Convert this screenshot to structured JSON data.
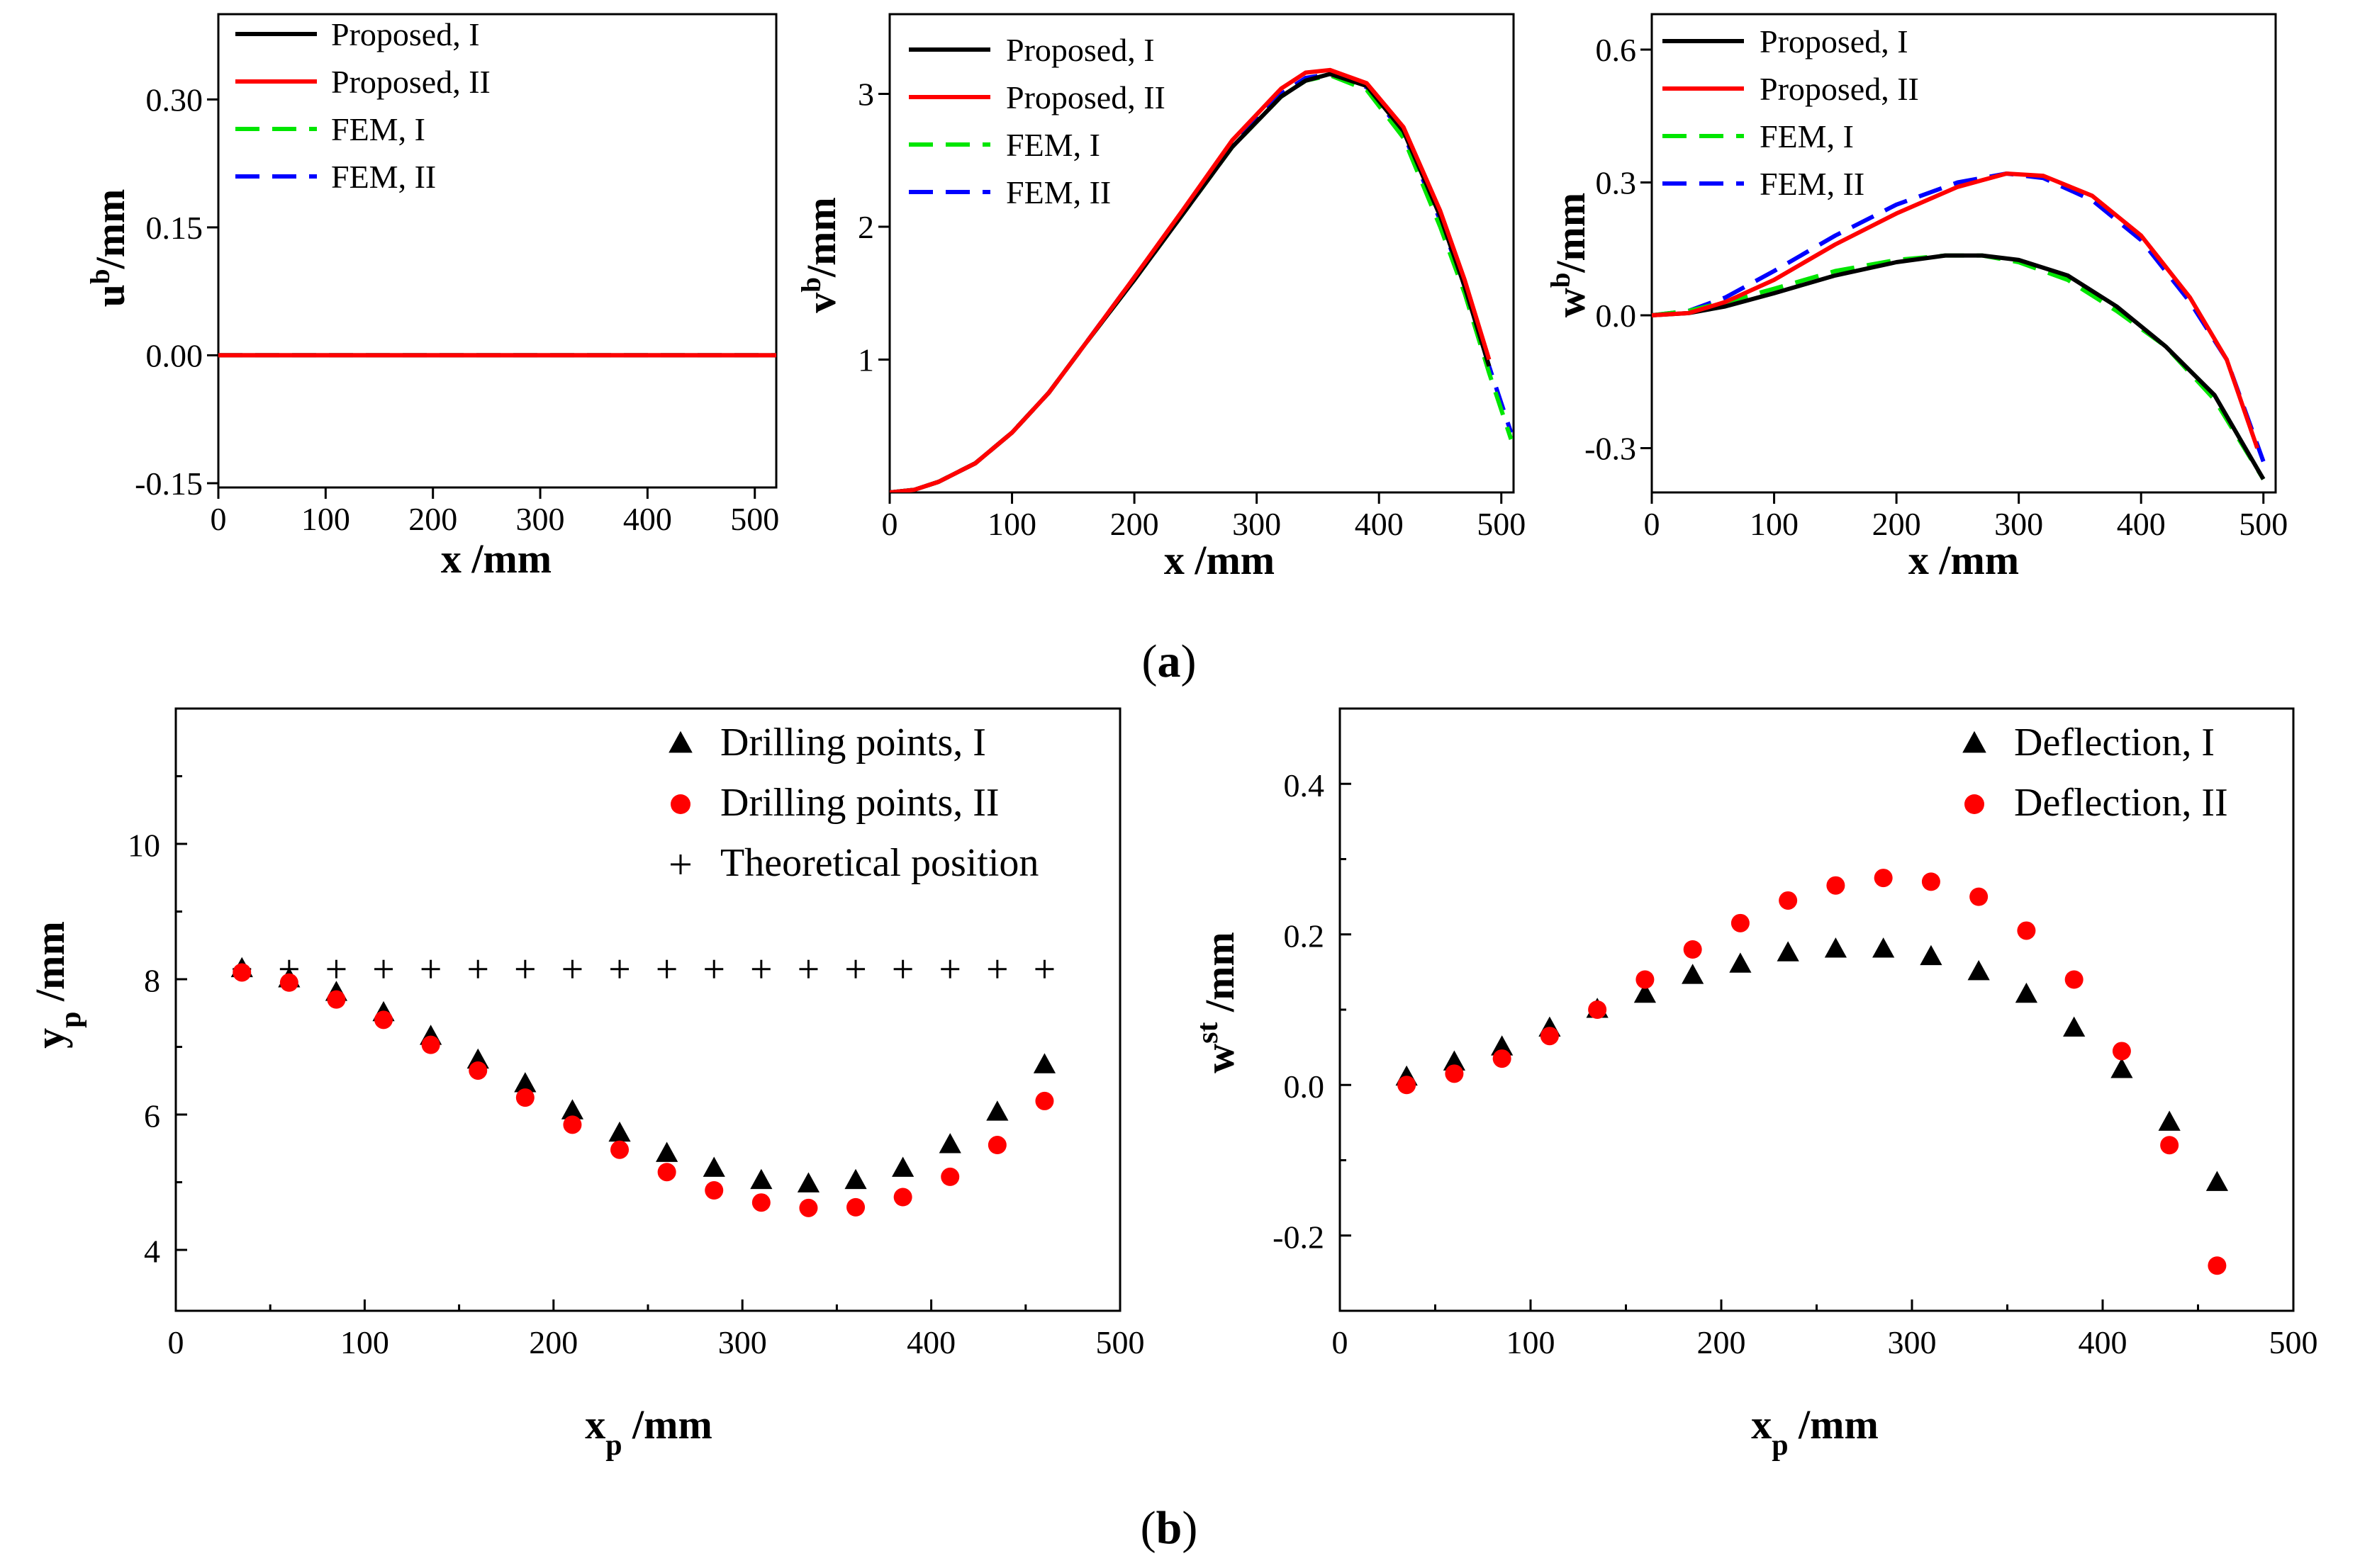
{
  "panels": {
    "a": {
      "open": "(",
      "letter": "a",
      "close": ")"
    },
    "b": {
      "open": "(",
      "letter": "b",
      "close": ")"
    }
  },
  "chart_data": [
    {
      "id": "ub",
      "type": "line",
      "ylabel": {
        "main": "u",
        "sup": "b",
        "unit": "/mm"
      },
      "xlabel": "x /mm",
      "xlim": [
        0,
        520
      ],
      "ylim": [
        -0.155,
        0.4
      ],
      "xticks": [
        0,
        100,
        200,
        300,
        400,
        500
      ],
      "xtick_labels": [
        "0",
        "100",
        "200",
        "300",
        "400",
        "500"
      ],
      "yticks": [
        -0.15,
        0,
        0.15,
        0.3
      ],
      "ytick_labels": [
        "-0.15",
        "0.00",
        "0.15",
        "0.30"
      ],
      "legend": [
        {
          "label": "Proposed, I",
          "color": "#000000",
          "dash": false
        },
        {
          "label": "Proposed, II",
          "color": "#ff0000",
          "dash": false
        },
        {
          "label": "FEM, I",
          "color": "#00e600",
          "dash": true
        },
        {
          "label": "FEM, II",
          "color": "#0000ff",
          "dash": true
        }
      ],
      "series": [
        {
          "name": "FEM, II",
          "color": "#0000ff",
          "dash": true,
          "x": [
            0,
            520
          ],
          "y": [
            0,
            0
          ]
        },
        {
          "name": "FEM, I",
          "color": "#00e600",
          "dash": true,
          "x": [
            0,
            520
          ],
          "y": [
            0,
            0
          ]
        },
        {
          "name": "Proposed, I",
          "color": "#000000",
          "dash": false,
          "x": [
            0,
            520
          ],
          "y": [
            0,
            0
          ]
        },
        {
          "name": "Proposed, II",
          "color": "#ff0000",
          "dash": false,
          "x": [
            0,
            520
          ],
          "y": [
            0,
            0
          ]
        }
      ]
    },
    {
      "id": "vb",
      "type": "line",
      "ylabel": {
        "main": "v",
        "sup": "b",
        "unit": "/mm"
      },
      "xlabel": "x /mm",
      "xlim": [
        0,
        510
      ],
      "ylim": [
        0,
        3.6
      ],
      "xticks": [
        0,
        100,
        200,
        300,
        400,
        500
      ],
      "xtick_labels": [
        "0",
        "100",
        "200",
        "300",
        "400",
        "500"
      ],
      "yticks": [
        1,
        2,
        3
      ],
      "ytick_labels": [
        "1",
        "2",
        "3"
      ],
      "legend": [
        {
          "label": "Proposed, I",
          "color": "#000000",
          "dash": false
        },
        {
          "label": "Proposed, II",
          "color": "#ff0000",
          "dash": false
        },
        {
          "label": "FEM, I",
          "color": "#00e600",
          "dash": true
        },
        {
          "label": "FEM, II",
          "color": "#0000ff",
          "dash": true
        }
      ],
      "series": [
        {
          "name": "FEM, II",
          "color": "#0000ff",
          "dash": true,
          "x": [
            0,
            20,
            40,
            70,
            100,
            130,
            160,
            200,
            240,
            280,
            320,
            340,
            360,
            390,
            420,
            450,
            470,
            490,
            508
          ],
          "y": [
            0,
            0.02,
            0.08,
            0.22,
            0.45,
            0.75,
            1.12,
            1.62,
            2.12,
            2.62,
            3.0,
            3.12,
            3.15,
            3.05,
            2.7,
            2.05,
            1.55,
            0.95,
            0.45
          ]
        },
        {
          "name": "FEM, I",
          "color": "#00e600",
          "dash": true,
          "x": [
            0,
            20,
            40,
            70,
            100,
            130,
            160,
            200,
            240,
            280,
            320,
            340,
            360,
            390,
            420,
            450,
            470,
            490,
            508
          ],
          "y": [
            0,
            0.02,
            0.08,
            0.22,
            0.45,
            0.75,
            1.12,
            1.6,
            2.1,
            2.6,
            2.98,
            3.1,
            3.14,
            3.03,
            2.67,
            2.0,
            1.5,
            0.9,
            0.4
          ]
        },
        {
          "name": "Proposed, I",
          "color": "#000000",
          "dash": false,
          "x": [
            0,
            20,
            40,
            70,
            100,
            130,
            160,
            200,
            240,
            280,
            320,
            340,
            360,
            390,
            420,
            450,
            470,
            490
          ],
          "y": [
            0,
            0.02,
            0.08,
            0.22,
            0.45,
            0.75,
            1.12,
            1.6,
            2.1,
            2.6,
            2.98,
            3.1,
            3.15,
            3.06,
            2.72,
            2.08,
            1.55,
            0.95
          ]
        },
        {
          "name": "Proposed, II",
          "color": "#ff0000",
          "dash": false,
          "x": [
            0,
            20,
            40,
            70,
            100,
            130,
            160,
            200,
            240,
            280,
            320,
            340,
            360,
            390,
            420,
            450,
            470,
            490
          ],
          "y": [
            0,
            0.02,
            0.08,
            0.22,
            0.45,
            0.75,
            1.12,
            1.62,
            2.13,
            2.65,
            3.04,
            3.16,
            3.18,
            3.08,
            2.75,
            2.12,
            1.6,
            1.0
          ]
        }
      ]
    },
    {
      "id": "wb",
      "type": "line",
      "ylabel": {
        "main": "w",
        "sup": "b",
        "unit": "/mm"
      },
      "xlabel": "x /mm",
      "xlim": [
        0,
        510
      ],
      "ylim": [
        -0.4,
        0.68
      ],
      "xticks": [
        0,
        100,
        200,
        300,
        400,
        500
      ],
      "xtick_labels": [
        "0",
        "100",
        "200",
        "300",
        "400",
        "500"
      ],
      "yticks": [
        -0.3,
        0,
        0.3,
        0.6
      ],
      "ytick_labels": [
        "-0.3",
        "0.0",
        "0.3",
        "0.6"
      ],
      "legend": [
        {
          "label": "Proposed, I",
          "color": "#000000",
          "dash": false
        },
        {
          "label": "Proposed, II",
          "color": "#ff0000",
          "dash": false
        },
        {
          "label": "FEM, I",
          "color": "#00e600",
          "dash": true
        },
        {
          "label": "FEM, II",
          "color": "#0000ff",
          "dash": true
        }
      ],
      "series": [
        {
          "name": "FEM, II",
          "color": "#0000ff",
          "dash": true,
          "x": [
            0,
            30,
            60,
            100,
            150,
            200,
            250,
            290,
            320,
            360,
            400,
            440,
            470,
            500
          ],
          "y": [
            0,
            0.01,
            0.04,
            0.1,
            0.18,
            0.25,
            0.3,
            0.32,
            0.31,
            0.26,
            0.17,
            0.03,
            -0.1,
            -0.33
          ]
        },
        {
          "name": "FEM, I",
          "color": "#00e600",
          "dash": true,
          "x": [
            0,
            30,
            60,
            100,
            150,
            200,
            240,
            270,
            300,
            340,
            380,
            420,
            460,
            500
          ],
          "y": [
            0,
            0.01,
            0.03,
            0.06,
            0.1,
            0.125,
            0.135,
            0.135,
            0.12,
            0.08,
            0.01,
            -0.07,
            -0.19,
            -0.37
          ]
        },
        {
          "name": "Proposed, I",
          "color": "#000000",
          "dash": false,
          "x": [
            0,
            30,
            60,
            100,
            150,
            200,
            240,
            270,
            300,
            340,
            380,
            420,
            460,
            500
          ],
          "y": [
            0,
            0.005,
            0.02,
            0.05,
            0.09,
            0.12,
            0.135,
            0.135,
            0.125,
            0.09,
            0.02,
            -0.07,
            -0.18,
            -0.37
          ]
        },
        {
          "name": "Proposed, II",
          "color": "#ff0000",
          "dash": false,
          "x": [
            0,
            30,
            60,
            100,
            150,
            200,
            250,
            290,
            320,
            360,
            400,
            440,
            470,
            495
          ],
          "y": [
            0,
            0.005,
            0.03,
            0.08,
            0.16,
            0.23,
            0.29,
            0.32,
            0.315,
            0.27,
            0.18,
            0.04,
            -0.1,
            -0.3
          ]
        }
      ]
    },
    {
      "id": "yp",
      "type": "scatter",
      "ylabel": {
        "main": "y",
        "sub": "p",
        "unit": " /mm"
      },
      "xlabel": {
        "main": "x",
        "sub": "p",
        "unit": " /mm"
      },
      "xlim": [
        0,
        500
      ],
      "ylim": [
        3.1,
        12
      ],
      "xticks": [
        0,
        100,
        200,
        300,
        400,
        500
      ],
      "xtick_labels": [
        "0",
        "100",
        "200",
        "300",
        "400",
        "500"
      ],
      "xminor": [
        50,
        150,
        250,
        350,
        450
      ],
      "yticks": [
        4,
        6,
        8,
        10
      ],
      "ytick_labels": [
        "4",
        "6",
        "8",
        "10"
      ],
      "yminor": [
        5,
        7,
        9,
        11
      ],
      "legend": [
        {
          "label": "Drilling points, I",
          "marker": "triangle",
          "color": "#000000"
        },
        {
          "label": "Drilling points, II",
          "marker": "circle",
          "color": "#ff0000"
        },
        {
          "label": "Theoretical position",
          "marker": "plus",
          "color": "#000000"
        }
      ],
      "series": [
        {
          "name": "Theoretical position",
          "marker": "plus",
          "color": "#000000",
          "x": [
            35,
            60,
            85,
            110,
            135,
            160,
            185,
            210,
            235,
            260,
            285,
            310,
            335,
            360,
            385,
            410,
            435,
            460
          ],
          "y": [
            8.15,
            8.15,
            8.15,
            8.15,
            8.15,
            8.15,
            8.15,
            8.15,
            8.15,
            8.15,
            8.15,
            8.15,
            8.15,
            8.15,
            8.15,
            8.15,
            8.15,
            8.15
          ]
        },
        {
          "name": "Drilling points, I",
          "marker": "triangle",
          "color": "#000000",
          "x": [
            35,
            60,
            85,
            110,
            135,
            160,
            185,
            210,
            235,
            260,
            285,
            310,
            335,
            360,
            385,
            410,
            435,
            460
          ],
          "y": [
            8.15,
            8.0,
            7.8,
            7.5,
            7.15,
            6.8,
            6.45,
            6.05,
            5.72,
            5.42,
            5.2,
            5.02,
            4.97,
            5.02,
            5.2,
            5.55,
            6.03,
            6.73
          ]
        },
        {
          "name": "Drilling points, II",
          "marker": "circle",
          "color": "#ff0000",
          "x": [
            35,
            60,
            85,
            110,
            135,
            160,
            185,
            210,
            235,
            260,
            285,
            310,
            335,
            360,
            385,
            410,
            435,
            460
          ],
          "y": [
            8.1,
            7.95,
            7.7,
            7.4,
            7.03,
            6.65,
            6.25,
            5.85,
            5.48,
            5.15,
            4.88,
            4.7,
            4.62,
            4.63,
            4.78,
            5.08,
            5.55,
            6.2
          ]
        }
      ]
    },
    {
      "id": "wst",
      "type": "scatter",
      "ylabel": {
        "main": "w",
        "sup": "st",
        "unit": " /mm"
      },
      "xlabel": {
        "main": "x",
        "sub": "p",
        "unit": " /mm"
      },
      "xlim": [
        0,
        500
      ],
      "ylim": [
        -0.3,
        0.5
      ],
      "xticks": [
        0,
        100,
        200,
        300,
        400,
        500
      ],
      "xtick_labels": [
        "0",
        "100",
        "200",
        "300",
        "400",
        "500"
      ],
      "xminor": [
        50,
        150,
        250,
        350,
        450
      ],
      "yticks": [
        -0.2,
        0,
        0.2,
        0.4
      ],
      "ytick_labels": [
        "-0.2",
        "0.0",
        "0.2",
        "0.4"
      ],
      "yminor": [
        -0.1,
        0.1,
        0.3
      ],
      "legend": [
        {
          "label": "Deflection, I",
          "marker": "triangle",
          "color": "#000000"
        },
        {
          "label": "Deflection, II",
          "marker": "circle",
          "color": "#ff0000"
        }
      ],
      "series": [
        {
          "name": "Deflection, I",
          "marker": "triangle",
          "color": "#000000",
          "x": [
            35,
            60,
            85,
            110,
            135,
            160,
            185,
            210,
            235,
            260,
            285,
            310,
            335,
            360,
            385,
            410,
            435,
            460
          ],
          "y": [
            0.01,
            0.03,
            0.05,
            0.075,
            0.1,
            0.12,
            0.145,
            0.16,
            0.175,
            0.18,
            0.18,
            0.17,
            0.15,
            0.12,
            0.075,
            0.02,
            -0.05,
            -0.13
          ]
        },
        {
          "name": "Deflection, II",
          "marker": "circle",
          "color": "#ff0000",
          "x": [
            35,
            60,
            85,
            110,
            135,
            160,
            185,
            210,
            235,
            260,
            285,
            310,
            335,
            360,
            385,
            410,
            435,
            460
          ],
          "y": [
            0.0,
            0.015,
            0.035,
            0.065,
            0.1,
            0.14,
            0.18,
            0.215,
            0.245,
            0.265,
            0.275,
            0.27,
            0.25,
            0.205,
            0.14,
            0.045,
            -0.08,
            -0.24
          ]
        }
      ]
    }
  ]
}
